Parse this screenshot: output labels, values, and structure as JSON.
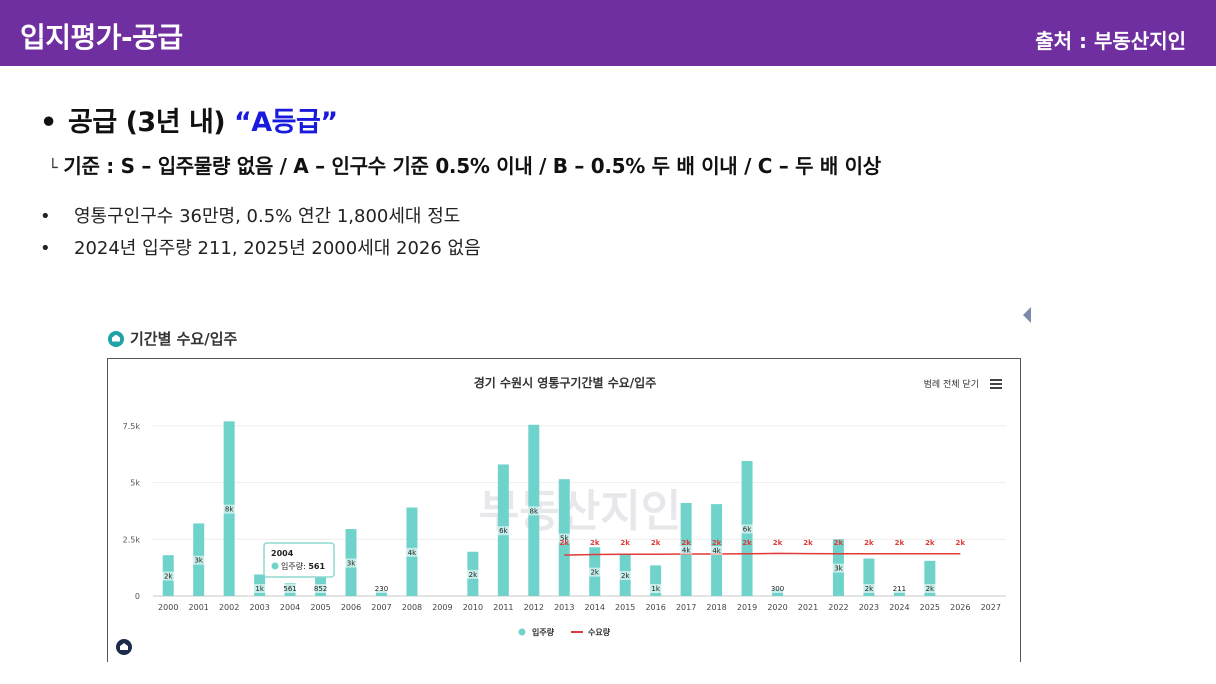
{
  "header": {
    "title": "입지평가-공급",
    "source": "출처 : 부동산지인"
  },
  "content": {
    "heading_prefix": "공급 (3년 내) ",
    "heading_grade": "“A등급”",
    "criteria": "기준 : S – 입주물량 없음 / A – 인구수 기준 0.5% 이내 / B – 0.5% 두 배 이내 / C – 두 배 이상",
    "bullets": [
      "영통구인구수 36만명, 0.5% 연간 1,800세대 정도",
      "2024년 입주량 211, 2025년 2000세대 2026 없음"
    ]
  },
  "widget": {
    "title": "기간별 수요/입주",
    "legend_toggle_label": "범례 전체 닫기",
    "tooltip": {
      "year": "2004",
      "label": "입주량: ",
      "value": "561"
    },
    "watermark": "부동산지인"
  },
  "colors": {
    "header_bg": "#6f2fa0",
    "supply_bar": "#6fd3cb",
    "demand_line": "#e03a3a",
    "grade_text": "#1a1adf"
  },
  "chart_data": {
    "type": "bar",
    "title": "경기 수원시 영통구기간별 수요/입주",
    "categories": [
      "2000",
      "2001",
      "2002",
      "2003",
      "2004",
      "2005",
      "2006",
      "2007",
      "2008",
      "2009",
      "2010",
      "2011",
      "2012",
      "2013",
      "2014",
      "2015",
      "2016",
      "2017",
      "2018",
      "2019",
      "2020",
      "2021",
      "2022",
      "2023",
      "2024",
      "2025",
      "2026",
      "2027"
    ],
    "ylim": [
      0,
      8200
    ],
    "yticks": [
      0,
      2500,
      5000,
      7500
    ],
    "ytick_labels": [
      "0",
      "2.5k",
      "5k",
      "7.5k"
    ],
    "series": [
      {
        "name": "입주량",
        "type": "bar",
        "values": [
          1800,
          3200,
          7700,
          950,
          561,
          852,
          2950,
          230,
          3900,
          null,
          1950,
          5800,
          7550,
          5150,
          2150,
          1850,
          1350,
          4100,
          4050,
          5950,
          300,
          null,
          2500,
          1650,
          211,
          1550,
          null,
          null
        ],
        "labels": [
          "2k",
          "3k",
          "8k",
          "1k",
          "561",
          "852",
          "3k",
          "230",
          "4k",
          "",
          "2k",
          "6k",
          "8k",
          "5k",
          "2k",
          "2k",
          "1k",
          "4k",
          "4k",
          "6k",
          "300",
          "",
          "3k",
          "2k",
          "211",
          "2k",
          "",
          ""
        ]
      },
      {
        "name": "수요량",
        "type": "line",
        "values": [
          null,
          null,
          null,
          null,
          null,
          null,
          null,
          null,
          null,
          null,
          null,
          null,
          null,
          1800,
          1830,
          1840,
          1840,
          1850,
          1850,
          1860,
          1880,
          1870,
          1860,
          1860,
          1860,
          1860,
          1860,
          null
        ],
        "labels": [
          "",
          "",
          "",
          "",
          "",
          "",
          "",
          "",
          "",
          "",
          "",
          "",
          "",
          "2k",
          "2k",
          "2k",
          "2k",
          "2k",
          "2k",
          "2k",
          "2k",
          "2k",
          "2k",
          "2k",
          "2k",
          "2k",
          "2k",
          ""
        ]
      }
    ]
  }
}
